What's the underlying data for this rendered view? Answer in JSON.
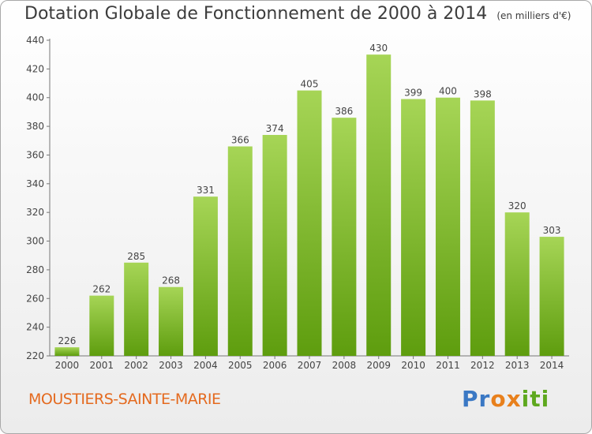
{
  "header": {
    "title": "Dotation Globale de Fonctionnement de 2000 à 2014",
    "unit": "(en milliers d'€)"
  },
  "footer": {
    "place": "MOUSTIERS-SAINTE-MARIE",
    "logo": [
      "P",
      "r",
      "o",
      "x",
      "i",
      "t",
      "i"
    ]
  },
  "colors": {
    "bar_top": "#a6d556",
    "bar_bottom": "#5e9d0e",
    "place": "#e46a1f",
    "logo": [
      "#3a78c4",
      "#3a78c4",
      "#e8801c",
      "#e8801c",
      "#5ea81e",
      "#5ea81e",
      "#5ea81e"
    ]
  },
  "chart_data": {
    "type": "bar",
    "title": "Dotation Globale de Fonctionnement de 2000 à 2014",
    "subtitle": "(en milliers d'€)",
    "categories": [
      "2000",
      "2001",
      "2002",
      "2003",
      "2004",
      "2005",
      "2006",
      "2007",
      "2008",
      "2009",
      "2010",
      "2011",
      "2012",
      "2013",
      "2014"
    ],
    "values": [
      226,
      262,
      285,
      268,
      331,
      366,
      374,
      405,
      386,
      430,
      399,
      400,
      398,
      320,
      303
    ],
    "ylim": [
      220,
      440
    ],
    "yticks": [
      220,
      240,
      260,
      280,
      300,
      320,
      340,
      360,
      380,
      400,
      420,
      440
    ],
    "grid": false,
    "legend": "none"
  }
}
